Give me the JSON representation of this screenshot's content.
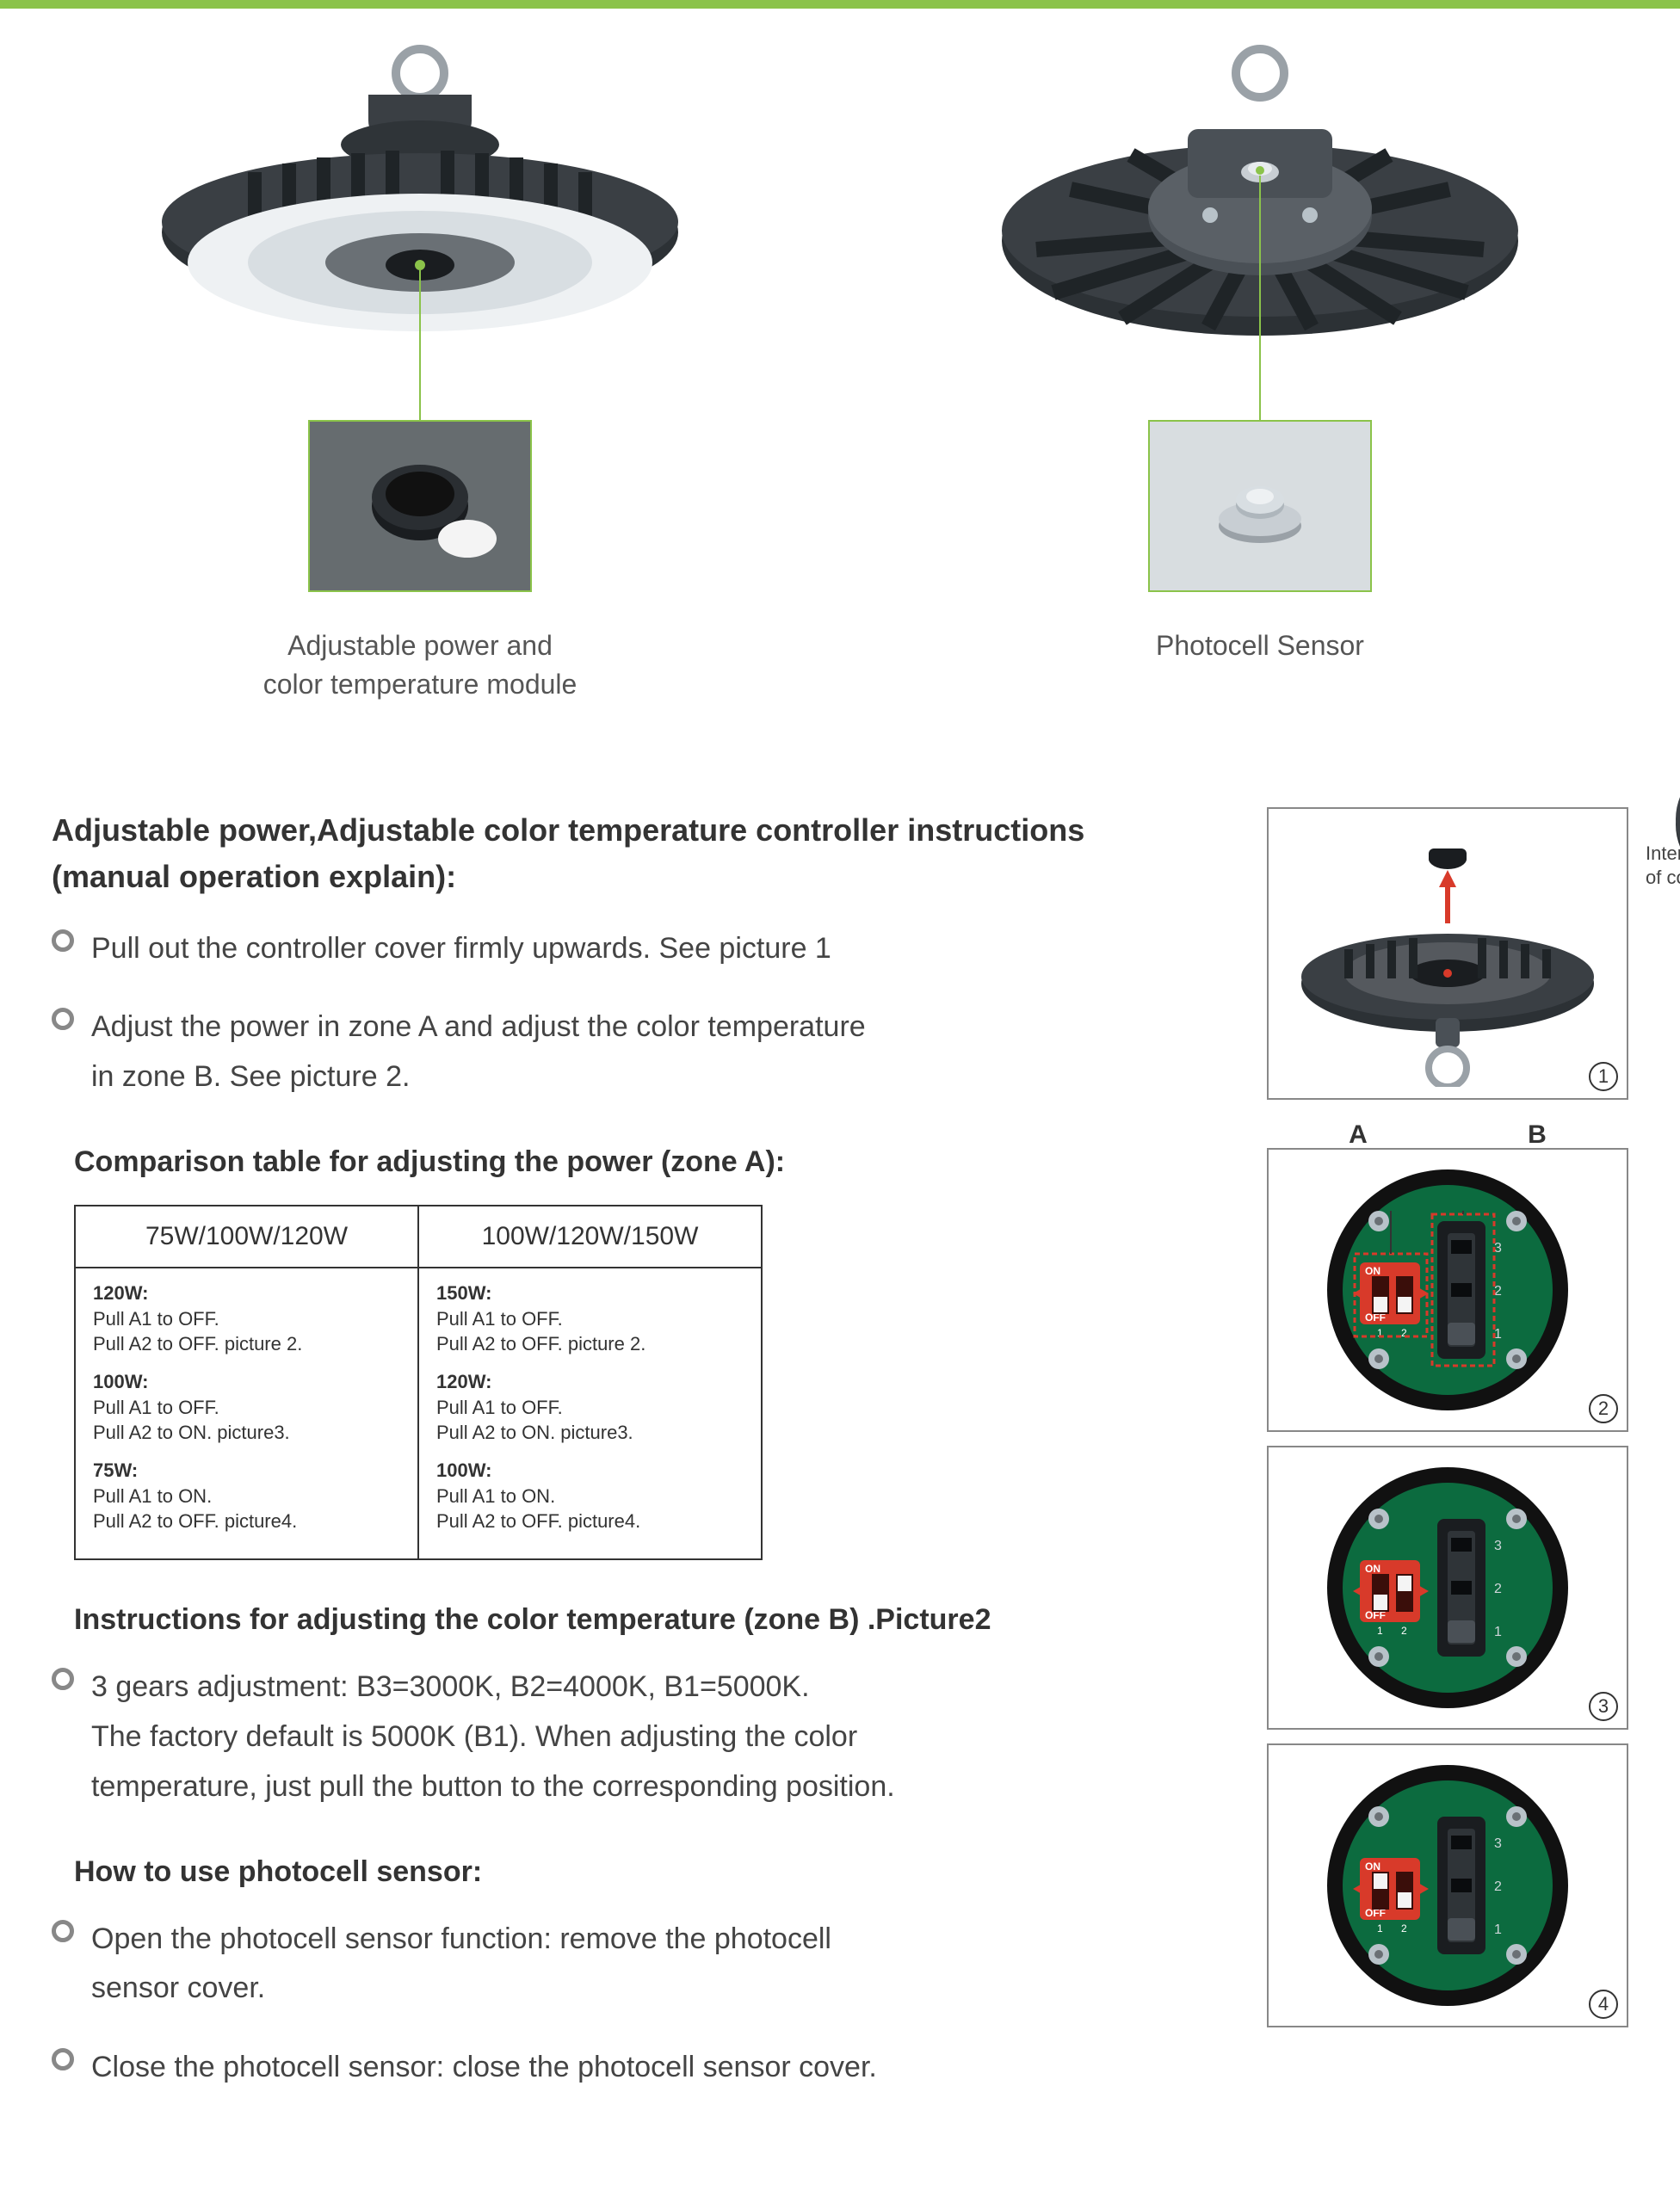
{
  "colors": {
    "accent": "#8bc34a",
    "text": "#4a4a4a",
    "heading": "#333333",
    "border": "#333333",
    "panel_border": "#888888",
    "product_dark": "#3a3f44",
    "product_mid": "#6a7075",
    "product_light": "#c8ced3",
    "pcb_green": "#0c6b3f",
    "pcb_ring": "#111111",
    "dip_red": "#d83a2a",
    "highlight_box": "#d83a2a",
    "screw": "#b8c2c9"
  },
  "figures": {
    "left_caption_line1": "Adjustable power and",
    "left_caption_line2": "color temperature module",
    "right_caption": "Photocell Sensor"
  },
  "headings": {
    "controller_instructions_l1": "Adjustable power,Adjustable color temperature  controller  instructions",
    "controller_instructions_l2": "(manual operation explain):",
    "comparison_table": "Comparison table  for adjusting the power (zone A):",
    "color_temp": "Instructions for adjusting the color temperature (zone B) .Picture2",
    "photocell": "How to use photocell sensor:"
  },
  "bullets": {
    "pull_cover": "Pull out the controller cover firmly upwards. See picture 1",
    "adjust_zones_l1": "Adjust the power in zone A and adjust the color temperature",
    "adjust_zones_l2": "in zone B. See picture 2.",
    "color_gears_l1": "3 gears adjustment: B3=3000K, B2=4000K, B1=5000K.",
    "color_gears_l2": "The factory default is 5000K (B1). When adjusting the color",
    "color_gears_l3": "temperature, just pull the button to the corresponding position.",
    "photocell_open_l1": "Open the photocell sensor function: remove the photocell",
    "photocell_open_l2": "sensor cover.",
    "photocell_close": "Close the photocell sensor: close the photocell sensor cover."
  },
  "table": {
    "col1_header": "75W/100W/120W",
    "col2_header": "100W/120W/150W",
    "col1": [
      {
        "w": "120W:",
        "l1": "Pull A1 to OFF.",
        "l2": "Pull A2 to OFF. picture 2."
      },
      {
        "w": "100W:",
        "l1": "Pull A1 to OFF.",
        "l2": "Pull A2 to ON. picture3."
      },
      {
        "w": "75W:",
        "l1": "Pull A1 to ON.",
        "l2": "Pull A2 to OFF. picture4."
      }
    ],
    "col2": [
      {
        "w": "150W:",
        "l1": "Pull A1 to OFF.",
        "l2": "Pull A2 to OFF. picture 2."
      },
      {
        "w": "120W:",
        "l1": "Pull A1 to OFF.",
        "l2": "Pull A2 to ON. picture3."
      },
      {
        "w": "100W:",
        "l1": "Pull A1 to ON.",
        "l2": "Pull A2 to OFF. picture4."
      }
    ]
  },
  "pictures": {
    "internal_note_l1": "Internal structure",
    "internal_note_l2": "of controller",
    "zone_a": "A",
    "zone_b": "B",
    "panel_numbers": [
      "1",
      "2",
      "3",
      "4"
    ],
    "dip_states": {
      "p2": {
        "a1": "OFF",
        "a2": "OFF"
      },
      "p3": {
        "a1": "OFF",
        "a2": "ON"
      },
      "p4": {
        "a1": "ON",
        "a2": "OFF"
      }
    },
    "dip_labels": {
      "on": "ON",
      "off": "OFF",
      "s1": "1",
      "s2": "2"
    },
    "slider_labels": [
      "1",
      "2",
      "3"
    ]
  }
}
